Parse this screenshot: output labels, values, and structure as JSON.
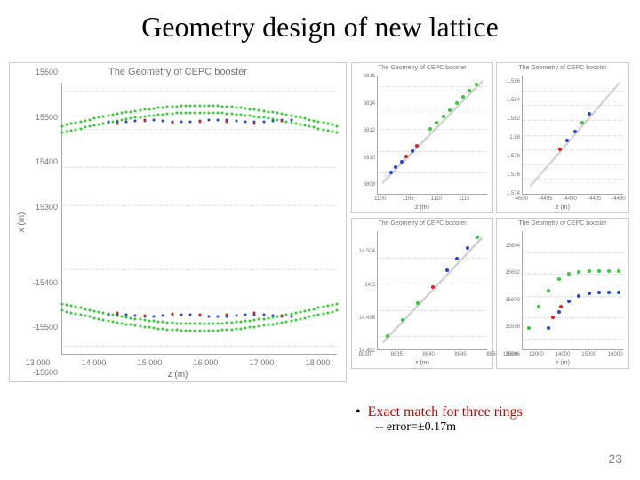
{
  "title": "Geometry design of new lattice",
  "page_number": "23",
  "caption": {
    "bullet": "Exact match for three rings",
    "sub": "-- error=±0.17m"
  },
  "main_chart": {
    "title": "The Geometry of CEPC booster",
    "xlabel": "z (m)",
    "ylabel": "x (m)",
    "title_fontsize": 11,
    "label_fontsize": 10,
    "tick_fontsize": 9,
    "xlim": [
      12500,
      18500
    ],
    "ylim": [
      -15650,
      15650
    ],
    "xticks": [
      13000,
      14000,
      15000,
      16000,
      17000,
      18000
    ],
    "yticks": [
      15600,
      15500,
      15400,
      15300,
      -15400,
      -15500,
      -15600
    ],
    "grid_color": "#dddddd",
    "background_color": "#ffffff",
    "colors": {
      "green": "#33cc33",
      "blue": "#2244dd",
      "red": "#dd2222"
    },
    "marker_size": 3,
    "top_band": {
      "y_center": 15510,
      "y_amp": 50,
      "break_y": 15350
    },
    "bottom_band": {
      "y_center": -15510,
      "y_amp": 50
    }
  },
  "small_charts": {
    "title": "The Geometry of CEPC booster",
    "xlabel": "z (m)",
    "title_fontsize": 7,
    "tick_fontsize": 6,
    "grid_color": "#dddddd",
    "colors": {
      "green": "#33cc33",
      "blue": "#2244dd",
      "red": "#dd2222"
    },
    "tr1": {
      "xlim": [
        1095,
        1120
      ],
      "ylim": [
        6806,
        6817
      ],
      "xticks": [
        1100,
        1105,
        1110,
        1115
      ],
      "yticks": [
        6808,
        6810,
        6812,
        6814,
        6816
      ],
      "diag": [
        [
          1096,
          6807
        ],
        [
          1119,
          6816.5
        ]
      ],
      "scatter": [
        {
          "x": 1098,
          "y": 6808,
          "c": "b"
        },
        {
          "x": 1099,
          "y": 6808.5,
          "c": "b"
        },
        {
          "x": 1100.5,
          "y": 6809,
          "c": "b"
        },
        {
          "x": 1101.5,
          "y": 6809.5,
          "c": "r"
        },
        {
          "x": 1103,
          "y": 6810,
          "c": "b"
        },
        {
          "x": 1104,
          "y": 6810.5,
          "c": "r"
        },
        {
          "x": 1107,
          "y": 6812,
          "c": "g"
        },
        {
          "x": 1108.5,
          "y": 6812.6,
          "c": "g"
        },
        {
          "x": 1110,
          "y": 6813.2,
          "c": "g"
        },
        {
          "x": 1111.5,
          "y": 6813.8,
          "c": "g"
        },
        {
          "x": 1113,
          "y": 6814.4,
          "c": "g"
        },
        {
          "x": 1114.5,
          "y": 6815,
          "c": "g"
        },
        {
          "x": 1116,
          "y": 6815.6,
          "c": "g"
        },
        {
          "x": 1117.5,
          "y": 6816.2,
          "c": "g"
        }
      ]
    },
    "tr2": {
      "xlim": [
        -4505,
        -4478
      ],
      "ylim": [
        1.572,
        1.588
      ],
      "xticks": [
        -4500,
        -4495,
        -4490,
        -4485,
        -4480
      ],
      "yticks": [
        1.574,
        1.576,
        1.578,
        1.58,
        1.582,
        1.584,
        1.586
      ],
      "diag": [
        [
          -4503,
          1.573
        ],
        [
          -4479,
          1.587
        ]
      ],
      "scatter": [
        {
          "x": -4495,
          "y": 1.578,
          "c": "r"
        },
        {
          "x": -4493,
          "y": 1.5792,
          "c": "b"
        },
        {
          "x": -4491,
          "y": 1.5804,
          "c": "b"
        },
        {
          "x": -4489,
          "y": 1.5816,
          "c": "g"
        },
        {
          "x": -4487,
          "y": 1.5828,
          "c": "b"
        }
      ]
    },
    "br1": {
      "xlim": [
        8828,
        8850
      ],
      "ylim": [
        14.49,
        14.508
      ],
      "xticks": [
        8830,
        8835,
        8840,
        8845,
        8850
      ],
      "yticks": [
        14.492,
        14.496,
        14.5,
        14.504
      ],
      "diag": [
        [
          8829,
          14.491
        ],
        [
          8849,
          14.507
        ]
      ],
      "scatter": [
        {
          "x": 8830,
          "y": 14.492,
          "c": "g"
        },
        {
          "x": 8833,
          "y": 14.4945,
          "c": "g"
        },
        {
          "x": 8836,
          "y": 14.497,
          "c": "g"
        },
        {
          "x": 8839,
          "y": 14.4995,
          "c": "r"
        },
        {
          "x": 8842,
          "y": 14.502,
          "c": "b"
        },
        {
          "x": 8844,
          "y": 14.5038,
          "c": "b"
        },
        {
          "x": 8846,
          "y": 14.5054,
          "c": "b"
        },
        {
          "x": 8848,
          "y": 14.507,
          "c": "g"
        }
      ]
    },
    "br2": {
      "xlim": [
        11500,
        16500
      ],
      "ylim": [
        15595,
        15606
      ],
      "xticks": [
        12000,
        13000,
        14000,
        15000,
        16000
      ],
      "yticks": [
        15596,
        15598,
        15600,
        15602,
        15604
      ],
      "green_curve": [
        [
          11800,
          15597
        ],
        [
          12300,
          15599
        ],
        [
          12800,
          15600.5
        ],
        [
          13300,
          15601.5
        ],
        [
          13800,
          15602
        ],
        [
          14300,
          15602.2
        ],
        [
          14800,
          15602.3
        ],
        [
          15300,
          15602.3
        ],
        [
          15800,
          15602.3
        ],
        [
          16300,
          15602.3
        ]
      ],
      "blue_curve": [
        [
          12800,
          15597
        ],
        [
          13300,
          15598.5
        ],
        [
          13800,
          15599.5
        ],
        [
          14300,
          15600
        ],
        [
          14800,
          15600.2
        ],
        [
          15300,
          15600.3
        ],
        [
          15800,
          15600.3
        ],
        [
          16300,
          15600.3
        ]
      ],
      "red_pts": [
        [
          13000,
          15598
        ],
        [
          13400,
          15599
        ]
      ]
    }
  }
}
